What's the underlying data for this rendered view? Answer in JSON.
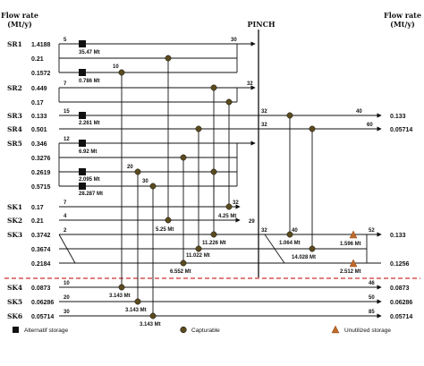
{
  "header": {
    "left_title": "Flow rate",
    "left_unit": "(Mt/y)",
    "right_title": "Flow rate",
    "right_unit": "(Mt/y)",
    "pinch_label": "PINCH"
  },
  "sources": [
    {
      "id": "SR1",
      "label": "SR1"
    },
    {
      "id": "SR2",
      "label": "SR2"
    },
    {
      "id": "SR3",
      "label": "SR3"
    },
    {
      "id": "SR4",
      "label": "SR4"
    },
    {
      "id": "SR5",
      "label": "SR5"
    },
    {
      "id": "SK1",
      "label": "SK1"
    },
    {
      "id": "SK2",
      "label": "SK2"
    },
    {
      "id": "SK3",
      "label": "SK3"
    },
    {
      "id": "SK4",
      "label": "SK4"
    },
    {
      "id": "SK5",
      "label": "SK5"
    },
    {
      "id": "SK6",
      "label": "SK6"
    }
  ],
  "left_flows": [
    "1.4188",
    "0.21",
    "0.1572",
    "0.449",
    "0.17",
    "0.133",
    "0.501",
    "0.346",
    "0.3276",
    "0.2619",
    "0.5715",
    "0.17",
    "0.21",
    "0.3742",
    "0.3674",
    "0.2184",
    "0.0873",
    "0.06286",
    "0.05714"
  ],
  "right_flows": [
    "0.133",
    "0.05714",
    "0.133",
    "0.1256",
    "0.0873",
    "0.06286",
    "0.05714"
  ],
  "temps": [
    "5",
    "30",
    "10",
    "7",
    "32",
    "15",
    "32",
    "40",
    "32",
    "60",
    "12",
    "20",
    "30",
    "7",
    "32",
    "4",
    "29",
    "2",
    "32",
    "40",
    "52",
    "10",
    "46",
    "20",
    "50",
    "30",
    "85"
  ],
  "mt_labels": [
    "35.47 Mt",
    "0.786 Mt",
    "2.261 Mt",
    "6.92 Mt",
    "2.095 Mt",
    "28.287 Mt",
    "4.25 Mt",
    "5.25 Mt",
    "11.226 Mt",
    "11.022 Mt",
    "6.552 Mt",
    "1.064 Mt",
    "14.028 Mt",
    "1.596 Mt",
    "2.512 Mt",
    "3.143 Mt",
    "3.143 Mt",
    "3.143 Mt"
  ],
  "legend": {
    "alternatif": "Alternatif storage",
    "capturable": "Capturable",
    "unutilized": "Unutilized storage"
  },
  "colors": {
    "line": "#111111",
    "capturable_node": "#5a4a1e",
    "unutilized_node": "#c0692a",
    "alternatif_node": "#111111",
    "divider": "#d23030"
  }
}
